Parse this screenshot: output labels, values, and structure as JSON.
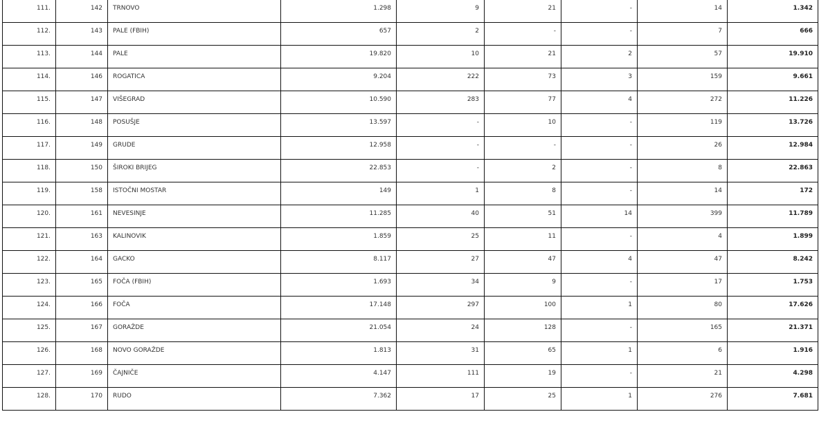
{
  "rows": [
    {
      "rb": "111.",
      "code": "142",
      "name": "TRNOVO",
      "c1": "1.298",
      "c2": "9",
      "c3": "21",
      "c4": "-",
      "c5": "14",
      "total": "1.342"
    },
    {
      "rb": "112.",
      "code": "143",
      "name": "PALE (FBIH)",
      "c1": "657",
      "c2": "2",
      "c3": "-",
      "c4": "-",
      "c5": "7",
      "total": "666"
    },
    {
      "rb": "113.",
      "code": "144",
      "name": "PALE",
      "c1": "19.820",
      "c2": "10",
      "c3": "21",
      "c4": "2",
      "c5": "57",
      "total": "19.910"
    },
    {
      "rb": "114.",
      "code": "146",
      "name": "ROGATICA",
      "c1": "9.204",
      "c2": "222",
      "c3": "73",
      "c4": "3",
      "c5": "159",
      "total": "9.661"
    },
    {
      "rb": "115.",
      "code": "147",
      "name": "VIŠEGRAD",
      "c1": "10.590",
      "c2": "283",
      "c3": "77",
      "c4": "4",
      "c5": "272",
      "total": "11.226"
    },
    {
      "rb": "116.",
      "code": "148",
      "name": "POSUŠJE",
      "c1": "13.597",
      "c2": "-",
      "c3": "10",
      "c4": "-",
      "c5": "119",
      "total": "13.726"
    },
    {
      "rb": "117.",
      "code": "149",
      "name": "GRUDE",
      "c1": "12.958",
      "c2": "-",
      "c3": "-",
      "c4": "-",
      "c5": "26",
      "total": "12.984"
    },
    {
      "rb": "118.",
      "code": "150",
      "name": "ŠIROKI BRIJEG",
      "c1": "22.853",
      "c2": "-",
      "c3": "2",
      "c4": "-",
      "c5": "8",
      "total": "22.863"
    },
    {
      "rb": "119.",
      "code": "158",
      "name": "ISTOČNI MOSTAR",
      "c1": "149",
      "c2": "1",
      "c3": "8",
      "c4": "-",
      "c5": "14",
      "total": "172"
    },
    {
      "rb": "120.",
      "code": "161",
      "name": "NEVESINJE",
      "c1": "11.285",
      "c2": "40",
      "c3": "51",
      "c4": "14",
      "c5": "399",
      "total": "11.789"
    },
    {
      "rb": "121.",
      "code": "163",
      "name": "KALINOVIK",
      "c1": "1.859",
      "c2": "25",
      "c3": "11",
      "c4": "-",
      "c5": "4",
      "total": "1.899"
    },
    {
      "rb": "122.",
      "code": "164",
      "name": "GACKO",
      "c1": "8.117",
      "c2": "27",
      "c3": "47",
      "c4": "4",
      "c5": "47",
      "total": "8.242"
    },
    {
      "rb": "123.",
      "code": "165",
      "name": "FOČA (FBIH)",
      "c1": "1.693",
      "c2": "34",
      "c3": "9",
      "c4": "-",
      "c5": "17",
      "total": "1.753"
    },
    {
      "rb": "124.",
      "code": "166",
      "name": "FOČA",
      "c1": "17.148",
      "c2": "297",
      "c3": "100",
      "c4": "1",
      "c5": "80",
      "total": "17.626"
    },
    {
      "rb": "125.",
      "code": "167",
      "name": "GORAŽDE",
      "c1": "21.054",
      "c2": "24",
      "c3": "128",
      "c4": "-",
      "c5": "165",
      "total": "21.371"
    },
    {
      "rb": "126.",
      "code": "168",
      "name": "NOVO GORAŽDE",
      "c1": "1.813",
      "c2": "31",
      "c3": "65",
      "c4": "1",
      "c5": "6",
      "total": "1.916"
    },
    {
      "rb": "127.",
      "code": "169",
      "name": "ČAJNIČE",
      "c1": "4.147",
      "c2": "111",
      "c3": "19",
      "c4": "-",
      "c5": "21",
      "total": "4.298"
    },
    {
      "rb": "128.",
      "code": "170",
      "name": "RUDO",
      "c1": "7.362",
      "c2": "17",
      "c3": "25",
      "c4": "1",
      "c5": "276",
      "total": "7.681"
    }
  ]
}
